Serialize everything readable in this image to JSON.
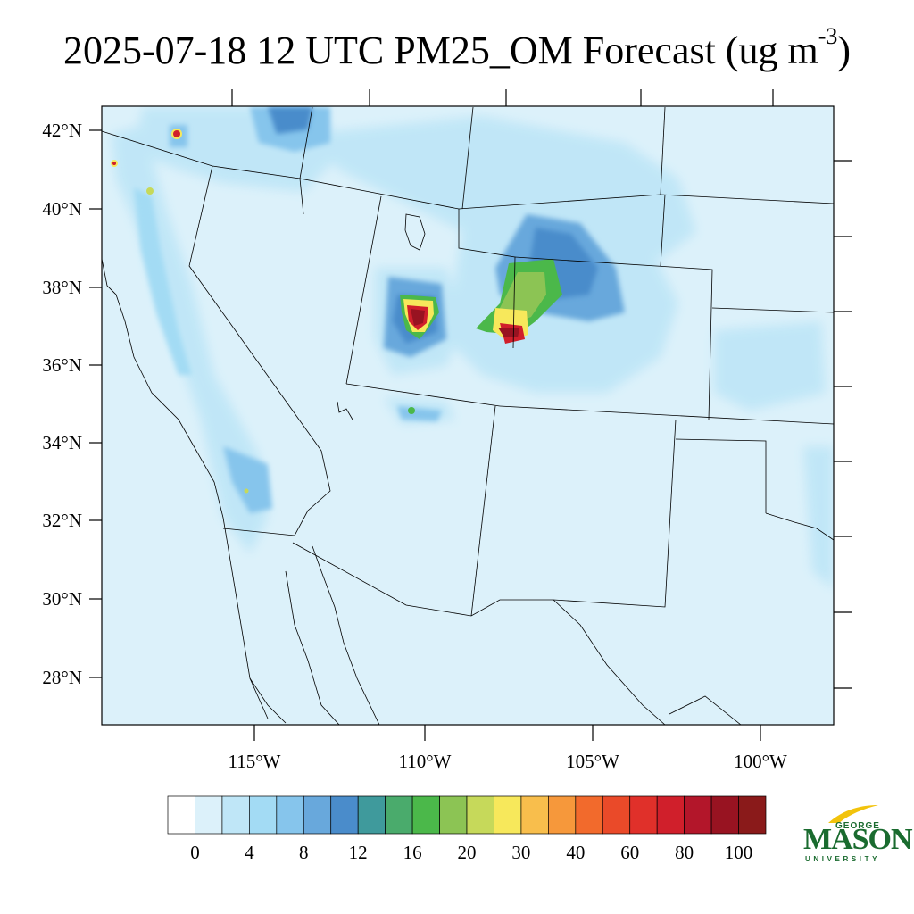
{
  "title": {
    "text": "2025-07-18 12 UTC PM25_OM Forecast (ug m",
    "superscript": "-3",
    "close": ")"
  },
  "map": {
    "lat_ticks": [
      "42°N",
      "40°N",
      "38°N",
      "36°N",
      "34°N",
      "32°N",
      "30°N",
      "28°N"
    ],
    "lon_ticks": [
      "115°W",
      "110°W",
      "105°W",
      "100°W"
    ],
    "background_color": "#dcf1fa",
    "hotspots": [
      {
        "name": "utah-fire",
        "peak": 100
      },
      {
        "name": "colorado-nm-fire",
        "peak": 100
      }
    ]
  },
  "colorbar": {
    "labels": [
      "0",
      "4",
      "8",
      "12",
      "16",
      "20",
      "30",
      "40",
      "60",
      "80",
      "100"
    ],
    "colors": [
      "#ffffff",
      "#dcf1fa",
      "#bfe6f7",
      "#a3dbf4",
      "#86c5ec",
      "#68a8dc",
      "#4a8ccb",
      "#3f9a9c",
      "#4aab6c",
      "#4bb84a",
      "#8cc454",
      "#c6d95a",
      "#f7e85b",
      "#f8be4c",
      "#f6983b",
      "#f26a2c",
      "#ea4a29",
      "#e0302a",
      "#d01f2b",
      "#b3162a",
      "#981321",
      "#8a1a1a"
    ]
  },
  "logo": {
    "top": "GEORGE",
    "main": "MASON",
    "bottom": "UNIVERSITY"
  }
}
